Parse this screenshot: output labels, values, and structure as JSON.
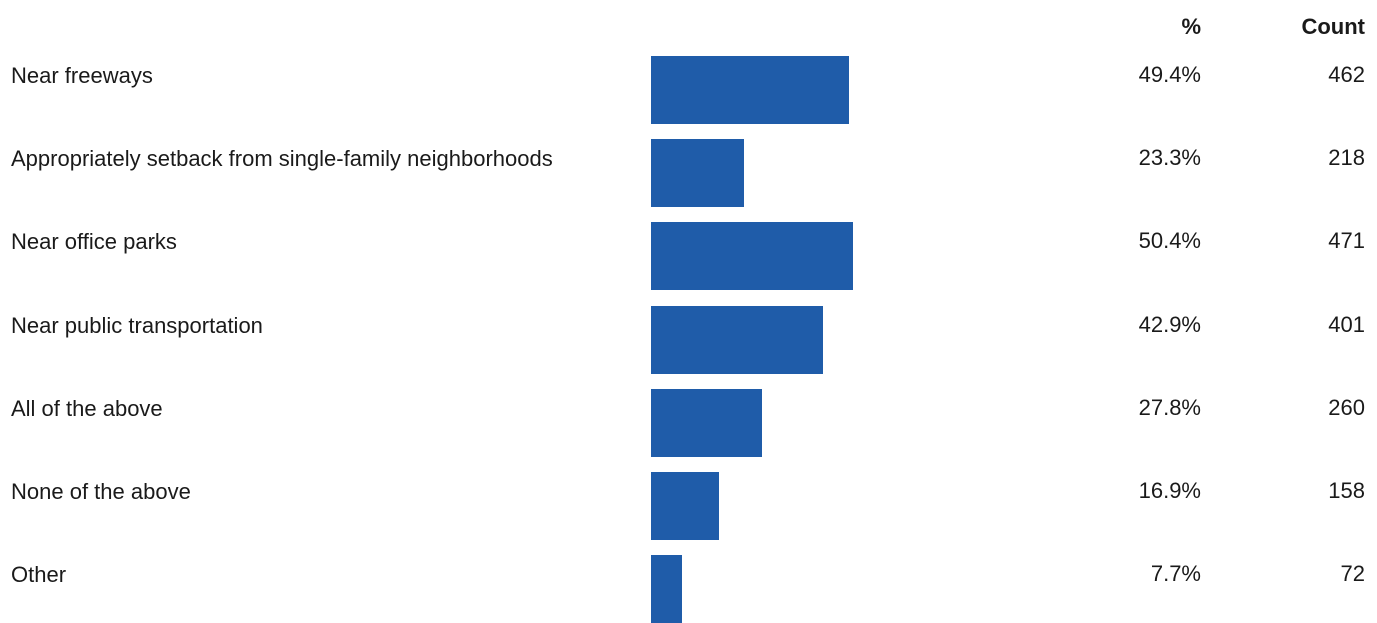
{
  "chart_data": {
    "type": "bar",
    "orientation": "horizontal",
    "color": "#1f5ca9",
    "column_headers": [
      "%",
      "Count"
    ],
    "categories": [
      "Near freeways",
      "Appropriately setback from single-family neighborhoods",
      "Near office parks",
      "Near public transportation",
      "All of the above",
      "None of the above",
      "Other"
    ],
    "values": [
      49.4,
      23.3,
      50.4,
      42.9,
      27.8,
      16.9,
      7.7
    ],
    "value_labels": [
      "49.4%",
      "23.3%",
      "50.4%",
      "42.9%",
      "27.8%",
      "16.9%",
      "7.7%"
    ],
    "counts": [
      462,
      218,
      471,
      401,
      260,
      158,
      72
    ]
  }
}
